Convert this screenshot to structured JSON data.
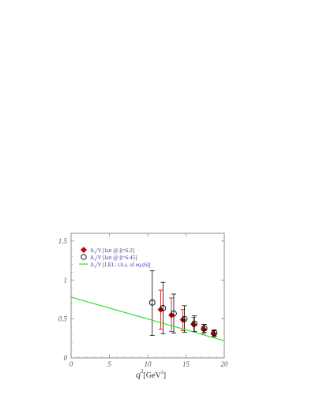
{
  "chart_data": {
    "type": "scatter",
    "xlabel_main": "q",
    "xlabel_sup": "2",
    "xlabel_unit_open": "[GeV",
    "xlabel_unit_sup": "2",
    "xlabel_unit_close": "]",
    "xlim": [
      0,
      20
    ],
    "ylim": [
      0,
      1.6
    ],
    "xticks": [
      "0",
      "5",
      "10",
      "15",
      "20"
    ],
    "yticks": [
      "0",
      "0.5",
      "1",
      "1.5"
    ],
    "series": [
      {
        "name": "A1/V [latt @ β=6.2]",
        "marker": "diamond",
        "color": "#cc0000",
        "errorbar_color": "#cc0000",
        "points": [
          {
            "x": 11.7,
            "y": 0.62,
            "lo": 0.37,
            "hi": 0.87
          },
          {
            "x": 13.1,
            "y": 0.55,
            "lo": 0.34,
            "hi": 0.77
          },
          {
            "x": 14.6,
            "y": 0.49,
            "lo": 0.35,
            "hi": 0.62
          },
          {
            "x": 16.0,
            "y": 0.43,
            "lo": 0.34,
            "hi": 0.52
          },
          {
            "x": 17.3,
            "y": 0.37,
            "lo": 0.31,
            "hi": 0.43
          },
          {
            "x": 18.6,
            "y": 0.31,
            "lo": 0.27,
            "hi": 0.35
          }
        ]
      },
      {
        "name": "A1/V [latt @ β=6.45]",
        "marker": "circle",
        "color": "#000000",
        "errorbar_color": "#000000",
        "points": [
          {
            "x": 10.6,
            "y": 0.71,
            "lo": 0.29,
            "hi": 1.12
          },
          {
            "x": 12.0,
            "y": 0.64,
            "lo": 0.31,
            "hi": 0.97
          },
          {
            "x": 13.4,
            "y": 0.57,
            "lo": 0.32,
            "hi": 0.82
          },
          {
            "x": 14.8,
            "y": 0.5,
            "lo": 0.33,
            "hi": 0.67
          },
          {
            "x": 16.1,
            "y": 0.44,
            "lo": 0.34,
            "hi": 0.54
          },
          {
            "x": 17.4,
            "y": 0.38,
            "lo": 0.33,
            "hi": 0.43
          },
          {
            "x": 18.7,
            "y": 0.32,
            "lo": 0.28,
            "hi": 0.36
          }
        ]
      },
      {
        "name": "A1/V [LEL: r.h.s. of eq.(6)]",
        "marker": "line",
        "color": "#33dd33",
        "points": [
          {
            "x": 0,
            "y": 0.78
          },
          {
            "x": 20,
            "y": 0.22
          }
        ]
      }
    ],
    "legend": [
      {
        "label_pre": "A",
        "label_sub": "1",
        "label_post": "/V [latt @ β=6.2]"
      },
      {
        "label_pre": "A",
        "label_sub": "1",
        "label_post": "/V [latt @ β=6.45]"
      },
      {
        "label_pre": "A",
        "label_sub": "1",
        "label_post": "/V [LEL: r.h.s. of eq.(6)]"
      }
    ],
    "legend_position": "top-left",
    "grid": false
  }
}
